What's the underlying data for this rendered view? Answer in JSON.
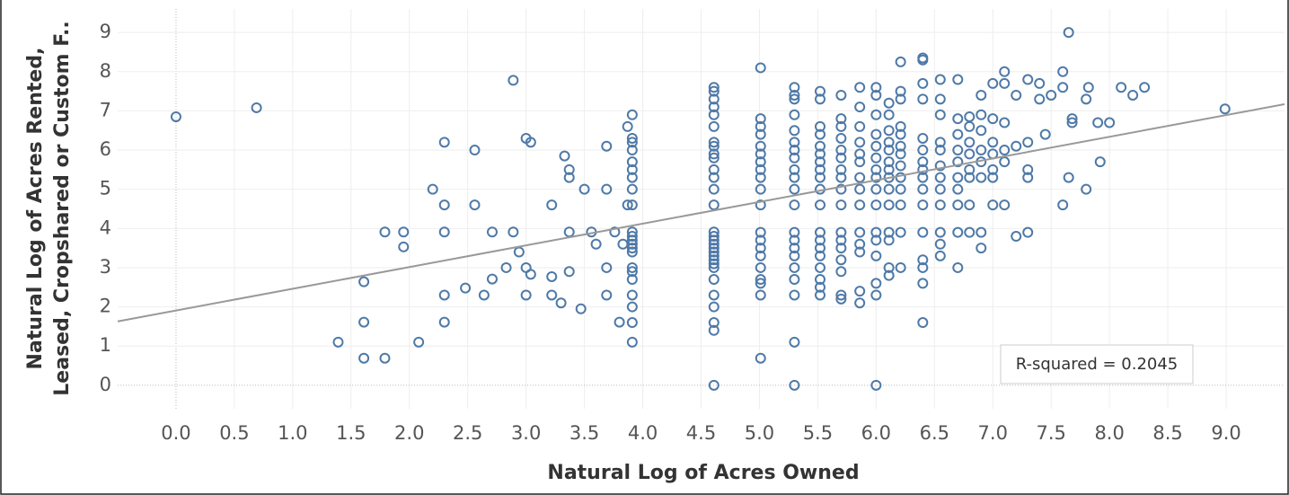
{
  "chart_data": {
    "type": "scatter",
    "x_label": "Natural Log of Acres Owned",
    "y_label": [
      "Natural Log of Acres Rented,",
      "Leased, Cropshared or Custom F.."
    ],
    "annotation": "R-squared = 0.2045",
    "color": "#4e79a7",
    "trendline": {
      "slope": 0.554,
      "intercept": 1.907,
      "color": "#999999"
    },
    "grid": true,
    "xlim": [
      -0.5,
      9.5
    ],
    "ylim": [
      -0.6,
      9.6
    ],
    "xticks": [
      {
        "value": 0,
        "label": "0.0"
      },
      0.5,
      {
        "value": 1,
        "label": "1.0"
      },
      1.5,
      {
        "value": 2,
        "label": "2.0"
      },
      2.5,
      {
        "value": 3,
        "label": "3.0"
      },
      3.5,
      {
        "value": 4,
        "label": "4.0"
      },
      4.5,
      {
        "value": 5,
        "label": "5.0"
      },
      5.5,
      {
        "value": 6,
        "label": "6.0"
      },
      6.5,
      {
        "value": 7,
        "label": "7.0"
      },
      7.5,
      {
        "value": 8,
        "label": "8.0"
      },
      8.5,
      {
        "value": 9,
        "label": "9.0"
      }
    ],
    "yticks": [
      0,
      1,
      2,
      3,
      4,
      5,
      6,
      7,
      8,
      9
    ],
    "x": [
      0,
      0.69,
      1.39,
      1.61,
      1.61,
      1.61,
      1.79,
      1.79,
      1.95,
      1.95,
      2.08,
      2.2,
      2.3,
      2.3,
      2.3,
      2.3,
      2.3,
      2.48,
      2.56,
      2.56,
      2.64,
      2.71,
      2.71,
      2.83,
      2.89,
      2.89,
      2.94,
      3,
      3,
      3,
      3.04,
      3.04,
      3.22,
      3.22,
      3.22,
      3.3,
      3.33,
      3.37,
      3.37,
      3.37,
      3.37,
      3.47,
      3.5,
      3.56,
      3.6,
      3.69,
      3.69,
      3.69,
      3.69,
      3.76,
      3.8,
      3.83,
      3.87,
      3.87,
      3.91,
      3.91,
      3.91,
      3.91,
      3.91,
      3.91,
      3.91,
      3.91,
      3.91,
      3.91,
      3.91,
      3.91,
      3.91,
      3.91,
      3.91,
      3.91,
      3.91,
      3.91,
      3.91,
      3.91,
      3.91,
      3.91,
      4.61,
      4.61,
      4.61,
      4.61,
      4.61,
      4.61,
      4.61,
      4.61,
      4.61,
      4.61,
      4.61,
      4.61,
      4.61,
      4.61,
      4.61,
      4.61,
      4.61,
      4.61,
      4.61,
      4.61,
      4.61,
      4.61,
      4.61,
      4.61,
      4.61,
      4.61,
      4.61,
      4.61,
      4.61,
      4.61,
      5.01,
      5.01,
      5.01,
      5.01,
      5.01,
      5.01,
      5.01,
      5.01,
      5.01,
      5.01,
      5.01,
      5.01,
      5.01,
      5.01,
      5.01,
      5.01,
      5.01,
      5.01,
      5.01,
      5.01,
      5.3,
      5.3,
      5.3,
      5.3,
      5.3,
      5.3,
      5.3,
      5.3,
      5.3,
      5.3,
      5.3,
      5.3,
      5.3,
      5.3,
      5.3,
      5.3,
      5.3,
      5.3,
      5.3,
      5.3,
      5.3,
      5.52,
      5.52,
      5.52,
      5.52,
      5.52,
      5.52,
      5.52,
      5.52,
      5.52,
      5.52,
      5.52,
      5.52,
      5.52,
      5.52,
      5.52,
      5.52,
      5.52,
      5.52,
      5.52,
      5.7,
      5.7,
      5.7,
      5.7,
      5.7,
      5.7,
      5.7,
      5.7,
      5.7,
      5.7,
      5.7,
      5.7,
      5.7,
      5.7,
      5.7,
      5.7,
      5.7,
      5.86,
      5.86,
      5.86,
      5.86,
      5.86,
      5.86,
      5.86,
      5.86,
      5.86,
      5.86,
      5.86,
      5.86,
      5.86,
      5.86,
      6,
      6,
      6,
      6,
      6,
      6,
      6,
      6,
      6,
      6,
      6,
      6,
      6,
      6,
      6,
      6,
      6.11,
      6.11,
      6.11,
      6.11,
      6.11,
      6.11,
      6.11,
      6.11,
      6.11,
      6.11,
      6.11,
      6.11,
      6.11,
      6.11,
      6.21,
      6.21,
      6.21,
      6.21,
      6.21,
      6.21,
      6.21,
      6.21,
      6.21,
      6.21,
      6.21,
      6.21,
      6.21,
      6.4,
      6.4,
      6.4,
      6.4,
      6.4,
      6.4,
      6.4,
      6.4,
      6.4,
      6.4,
      6.4,
      6.4,
      6.4,
      6.4,
      6.4,
      6.4,
      6.55,
      6.55,
      6.55,
      6.55,
      6.55,
      6.55,
      6.55,
      6.55,
      6.55,
      6.55,
      6.55,
      6.55,
      6.7,
      6.7,
      6.7,
      6.7,
      6.7,
      6.7,
      6.7,
      6.7,
      6.7,
      6.7,
      6.8,
      6.8,
      6.8,
      6.8,
      6.8,
      6.8,
      6.8,
      6.8,
      6.9,
      6.9,
      6.9,
      6.9,
      6.9,
      6.9,
      6.9,
      6.9,
      7,
      7,
      7,
      7,
      7,
      7,
      7,
      7.1,
      7.1,
      7.1,
      7.1,
      7.1,
      7.1,
      7.2,
      7.2,
      7.2,
      7.3,
      7.3,
      7.3,
      7.3,
      7.3,
      7.4,
      7.4,
      7.45,
      7.5,
      7.6,
      7.6,
      7.6,
      7.65,
      7.68,
      7.68,
      7.65,
      7.8,
      7.82,
      7.8,
      7.9,
      7.92,
      8,
      8.1,
      8.2,
      8.3,
      8.99
    ],
    "values": [
      6.85,
      7.08,
      1.1,
      2.64,
      1.61,
      0.69,
      3.91,
      0.69,
      3.91,
      3.53,
      1.1,
      5,
      6.2,
      4.6,
      3.91,
      2.3,
      1.61,
      2.48,
      6,
      4.6,
      2.3,
      3.91,
      2.71,
      3,
      7.78,
      3.91,
      3.4,
      6.3,
      3,
      2.3,
      6.2,
      2.83,
      4.6,
      2.77,
      2.3,
      2.1,
      5.85,
      5.5,
      5.3,
      3.91,
      2.9,
      1.95,
      5,
      3.91,
      3.6,
      6.1,
      5,
      3,
      2.3,
      3.91,
      1.61,
      3.6,
      6.6,
      4.6,
      6.9,
      6.3,
      6.2,
      6,
      5.7,
      5.5,
      5.3,
      5,
      4.6,
      3.91,
      3.8,
      3.7,
      3.6,
      3.5,
      3.4,
      3,
      2.9,
      2.7,
      2.3,
      2,
      1.6,
      1.1,
      7.6,
      7.5,
      7.3,
      7.1,
      6.9,
      6.6,
      6.2,
      6.1,
      5.9,
      5.8,
      5.5,
      5.3,
      5,
      4.6,
      3.91,
      3.8,
      3.7,
      3.6,
      3.5,
      3.4,
      3.3,
      3.2,
      3.1,
      3,
      2.7,
      2.3,
      2,
      1.6,
      1.4,
      0,
      8.1,
      6.8,
      6.6,
      6.4,
      6.1,
      5.9,
      5.7,
      5.5,
      5.3,
      5,
      4.6,
      3.9,
      3.7,
      3.5,
      3.3,
      3,
      2.7,
      2.6,
      2.3,
      0.69,
      7.6,
      7.4,
      7.3,
      6.9,
      6.5,
      6.2,
      6,
      5.8,
      5.5,
      5.3,
      5,
      4.6,
      3.9,
      3.7,
      3.5,
      3.3,
      3,
      2.7,
      2.3,
      1.1,
      0,
      7.5,
      7.3,
      6.6,
      6.4,
      6.1,
      5.9,
      5.7,
      5.5,
      5.3,
      5,
      4.6,
      3.9,
      3.7,
      3.5,
      3.3,
      3,
      2.7,
      2.5,
      2.3,
      7.4,
      6.8,
      6.6,
      6.3,
      6,
      5.8,
      5.5,
      5.3,
      5,
      4.6,
      3.9,
      3.7,
      3.5,
      3.2,
      2.9,
      2.3,
      2.2,
      7.6,
      7.1,
      6.6,
      6.2,
      5.9,
      5.7,
      5.3,
      5,
      4.6,
      3.9,
      3.6,
      3.4,
      2.4,
      2.1,
      7.6,
      7.4,
      6.9,
      6.4,
      6.1,
      5.8,
      5.5,
      5.3,
      5,
      4.6,
      3.9,
      3.7,
      3.3,
      2.6,
      2.3,
      0,
      7.2,
      6.9,
      6.5,
      6.2,
      6,
      5.7,
      5.5,
      5.3,
      5,
      4.6,
      3.9,
      3.7,
      3,
      2.8,
      8.25,
      7.5,
      7.3,
      6.6,
      6.4,
      6.1,
      5.9,
      5.6,
      5.3,
      5,
      4.6,
      3.9,
      3,
      8.35,
      8.3,
      7.7,
      7.3,
      6.3,
      6,
      5.7,
      5.5,
      5.3,
      5,
      4.6,
      3.9,
      3.2,
      3,
      2.6,
      1.6,
      7.8,
      7.3,
      6.9,
      6.2,
      6,
      5.6,
      5.3,
      5,
      4.6,
      3.9,
      3.6,
      3.3,
      7.8,
      6.8,
      6.4,
      6,
      5.7,
      5.3,
      5,
      4.6,
      3.9,
      3,
      6.85,
      6.6,
      6.2,
      5.9,
      5.5,
      5.3,
      4.6,
      3.9,
      7.4,
      6.9,
      6.5,
      6,
      5.7,
      5.3,
      3.9,
      3.5,
      7.7,
      6.8,
      6.2,
      5.9,
      5.5,
      5.3,
      4.6,
      8,
      7.7,
      6.7,
      6,
      5.7,
      4.6,
      7.4,
      6.1,
      3.8,
      7.8,
      6.2,
      5.5,
      5.3,
      3.9,
      7.7,
      7.3,
      6.4,
      7.4,
      8,
      7.6,
      4.6,
      9,
      6.8,
      6.7,
      5.3,
      7.3,
      7.6,
      5,
      6.7,
      5.7,
      6.7,
      7.6,
      7.4,
      7.6,
      7.05
    ]
  }
}
